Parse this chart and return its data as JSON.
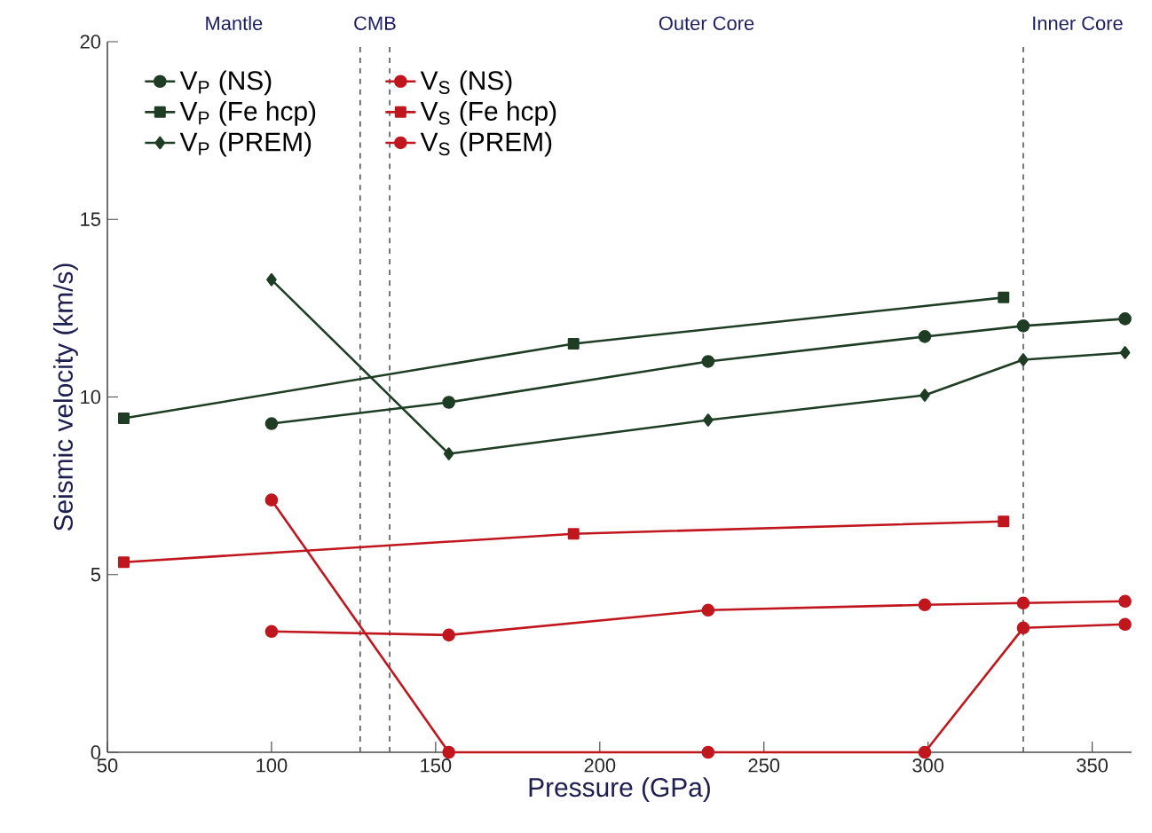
{
  "chart_data": {
    "type": "line",
    "xlabel": "Pressure (GPa)",
    "ylabel": "Seismic velocity (km/s)",
    "xlim": [
      50,
      362
    ],
    "ylim": [
      0,
      20
    ],
    "xticks": [
      50,
      100,
      150,
      200,
      250,
      300,
      350
    ],
    "yticks": [
      0,
      5,
      10,
      15,
      20
    ],
    "legend": "top left",
    "grid": false,
    "line_style": "solid",
    "series": [
      {
        "name": "V$_{P}$ (NS)",
        "color": "#1e3d24",
        "marker": "circle",
        "x": [
          100,
          154,
          233,
          299,
          329,
          360
        ],
        "values": [
          9.25,
          9.85,
          11.0,
          11.7,
          12.0,
          12.2
        ]
      },
      {
        "name": "V$_{S}$ (NS)",
        "color": "#c0161e",
        "marker": "circle",
        "x": [
          100,
          154,
          233,
          299,
          329,
          360
        ],
        "values": [
          3.4,
          3.3,
          4.0,
          4.15,
          4.2,
          4.25
        ]
      },
      {
        "name": "V$_{P}$ (Fe hcp)",
        "color": "#1e3d24",
        "marker": "square",
        "x": [
          55,
          192,
          323
        ],
        "values": [
          9.4,
          11.5,
          12.8
        ]
      },
      {
        "name": "V$_{S}$ (Fe hcp)",
        "color": "#c0161e",
        "marker": "square",
        "x": [
          55,
          192,
          323
        ],
        "values": [
          5.35,
          6.15,
          6.5
        ]
      },
      {
        "name": "V$_{P}$ (PREM)",
        "color": "#1e3d24",
        "marker": "diamond",
        "x": [
          100,
          154,
          233,
          299,
          329,
          360
        ],
        "values": [
          13.3,
          8.4,
          9.35,
          10.05,
          11.05,
          11.25
        ]
      },
      {
        "name": "V$_{S}$ (PREM)",
        "color": "#c0161e",
        "marker": "circle",
        "x": [
          100,
          154,
          233,
          299,
          329,
          360
        ],
        "values": [
          7.1,
          0,
          0,
          0,
          3.5,
          3.6
        ]
      }
    ],
    "ref_lines": [
      {
        "axis": "x",
        "value": 127,
        "color": "#555555",
        "line_style": "dashed"
      },
      {
        "axis": "x",
        "value": 136,
        "color": "#555555",
        "line_style": "dashed"
      },
      {
        "axis": "x",
        "value": 329,
        "color": "#555555",
        "line_style": "dashed"
      }
    ],
    "annotations": [
      "Mantle",
      "CMB",
      "Outer Core",
      "Inner Core"
    ]
  }
}
